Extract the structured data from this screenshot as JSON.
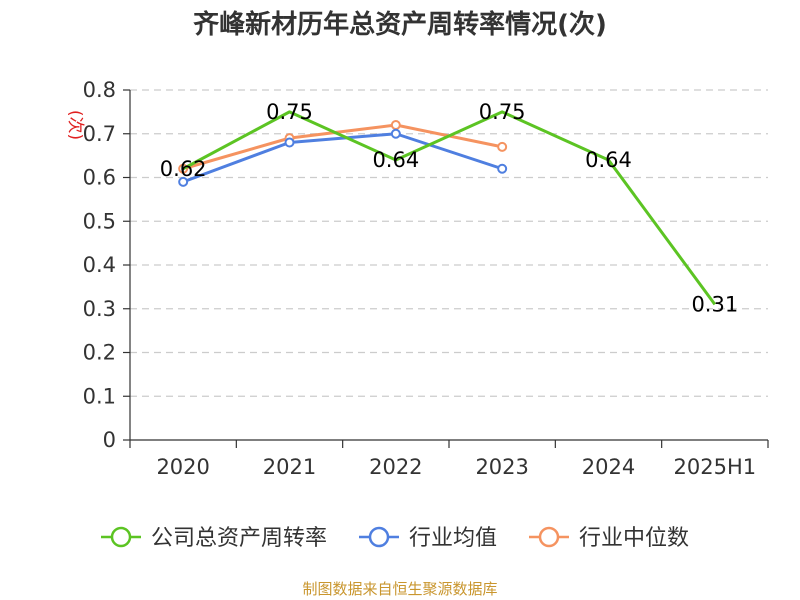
{
  "chart_data": {
    "type": "line",
    "title": "齐峰新材历年总资产周转率情况(次)",
    "ylabel": "(次)",
    "categories": [
      "2020",
      "2021",
      "2022",
      "2023",
      "2024",
      "2025H1"
    ],
    "ylim": [
      0,
      0.8
    ],
    "yticks": [
      0,
      0.1,
      0.2,
      0.3,
      0.4,
      0.5,
      0.6,
      0.7,
      0.8
    ],
    "grid": true,
    "legend_position": "bottom",
    "series": [
      {
        "name": "公司总资产周转率",
        "color": "#5cc423",
        "values": [
          0.62,
          0.75,
          0.64,
          0.75,
          0.64,
          0.31
        ],
        "show_labels": true,
        "show_markers": false
      },
      {
        "name": "行业均值",
        "color": "#4f7fe0",
        "values": [
          0.59,
          0.68,
          0.7,
          0.62,
          null,
          null
        ],
        "show_labels": false,
        "show_markers": true
      },
      {
        "name": "行业中位数",
        "color": "#f59360",
        "values": [
          0.62,
          0.69,
          0.72,
          0.67,
          null,
          null
        ],
        "show_labels": false,
        "show_markers": true
      }
    ]
  },
  "source": "制图数据来自恒生聚源数据库"
}
